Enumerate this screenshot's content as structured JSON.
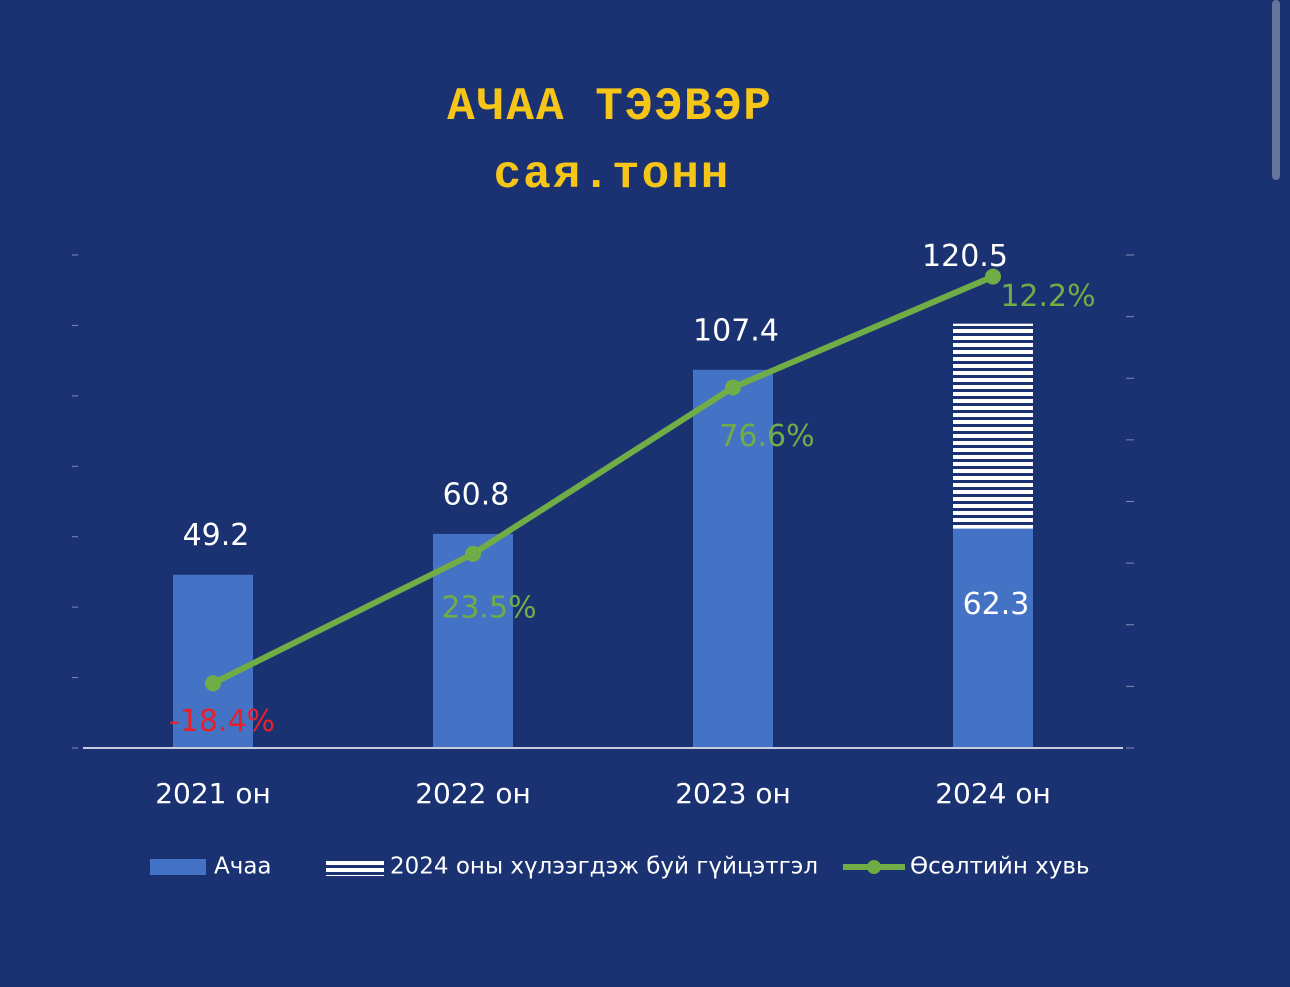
{
  "chart_data": {
    "type": "bar",
    "title": "АЧАА ТЭЭВЭР",
    "subtitle": "сая.тонн",
    "categories": [
      "2021 он",
      "2022 он",
      "2023 он",
      "2024 он"
    ],
    "series": [
      {
        "name": "Ачаа",
        "type": "bar",
        "color": "#4472c4",
        "values": [
          49.2,
          60.8,
          107.4,
          62.3
        ]
      },
      {
        "name": "2024 оны хүлээгдэж буй гүйцэтгэл",
        "type": "hatched-bar",
        "color": "#ffffff",
        "values": [
          null,
          null,
          null,
          120.5
        ]
      },
      {
        "name": "Өсөлтийн хувь",
        "type": "line",
        "axis": "y2",
        "color": "#70ad47",
        "values": [
          21,
          63,
          117,
          153
        ]
      }
    ],
    "annotations": [
      {
        "text": "-18.4%",
        "color": "#e8202a"
      },
      {
        "text": "23.5%",
        "color": "#70ad47"
      },
      {
        "text": "76.6%",
        "color": "#70ad47"
      },
      {
        "text": "12.2%",
        "color": "#70ad47"
      }
    ],
    "ylim": [
      0,
      140
    ],
    "yticks": [
      0,
      20,
      40,
      60,
      80,
      100,
      120,
      140
    ],
    "y2lim": [
      0,
      160
    ],
    "y2ticks": [
      0,
      20,
      40,
      60,
      80,
      100,
      120,
      140,
      160
    ],
    "legend": "bottom"
  }
}
